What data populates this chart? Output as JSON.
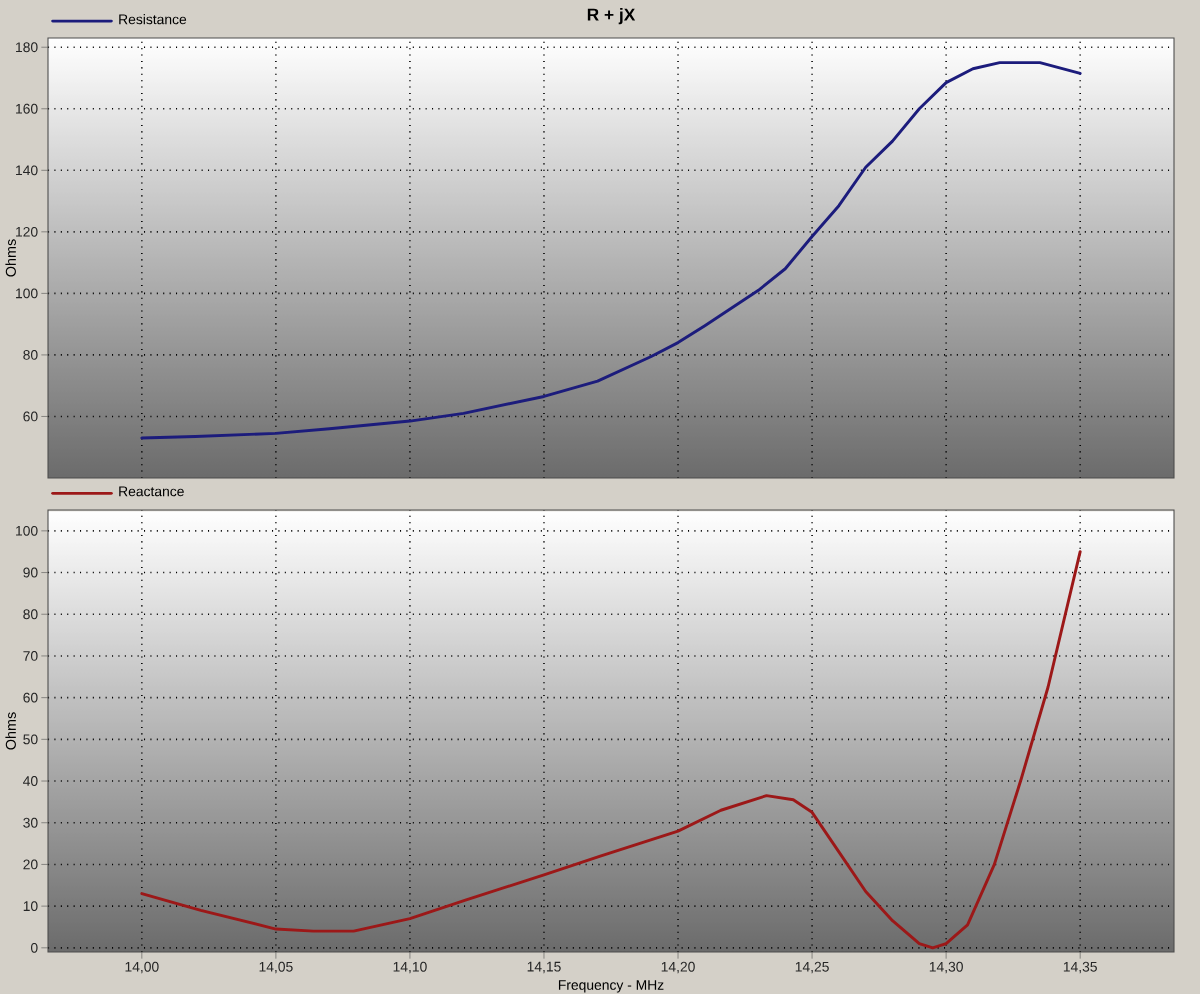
{
  "chart_data": [
    {
      "type": "line",
      "title": "R + jX",
      "ylabel": "Ohms",
      "x": [
        14.0,
        14.02,
        14.05,
        14.07,
        14.1,
        14.12,
        14.15,
        14.17,
        14.19,
        14.2,
        14.21,
        14.23,
        14.24,
        14.25,
        14.26,
        14.27,
        14.28,
        14.29,
        14.3,
        14.31,
        14.32,
        14.335,
        14.35
      ],
      "series": [
        {
          "name": "Resistance",
          "color": "#1c1c7c",
          "values": [
            53,
            53.5,
            54.5,
            56,
            58.5,
            61,
            66.5,
            71.5,
            79.5,
            84,
            89.5,
            101,
            108,
            118.5,
            128.5,
            141,
            149.5,
            160,
            168.5,
            173,
            175,
            175,
            171.5
          ]
        }
      ],
      "xlim": [
        13.965,
        14.385
      ],
      "ylim": [
        40,
        183
      ],
      "xticks": [
        14.0,
        14.05,
        14.1,
        14.15,
        14.2,
        14.25,
        14.3,
        14.35
      ],
      "yticks": [
        60,
        80,
        100,
        120,
        140,
        160,
        180
      ],
      "tick_labels": "y",
      "grid": true,
      "legend": "top left"
    },
    {
      "type": "line",
      "xlabel": "Frequency - MHz",
      "ylabel": "Ohms",
      "x": [
        14.0,
        14.022,
        14.05,
        14.064,
        14.079,
        14.1,
        14.121,
        14.15,
        14.171,
        14.2,
        14.216,
        14.233,
        14.243,
        14.25,
        14.26,
        14.27,
        14.28,
        14.29,
        14.295,
        14.3,
        14.308,
        14.318,
        14.328,
        14.338,
        14.35
      ],
      "series": [
        {
          "name": "Reactance",
          "color": "#9c1818",
          "values": [
            13,
            9,
            4.5,
            4,
            4,
            7,
            11.5,
            17.5,
            22,
            28,
            33,
            36.5,
            35.5,
            32.5,
            23,
            13.5,
            6.5,
            1,
            0,
            1,
            5.5,
            20,
            40.5,
            62.5,
            95
          ]
        }
      ],
      "xlim": [
        13.965,
        14.385
      ],
      "ylim": [
        -1,
        105
      ],
      "xticks": [
        {
          "value": 14.0,
          "label": "14,00"
        },
        {
          "value": 14.05,
          "label": "14,05"
        },
        {
          "value": 14.1,
          "label": "14,10"
        },
        {
          "value": 14.15,
          "label": "14,15"
        },
        {
          "value": 14.2,
          "label": "14,20"
        },
        {
          "value": 14.25,
          "label": "14,25"
        },
        {
          "value": 14.3,
          "label": "14,30"
        },
        {
          "value": 14.35,
          "label": "14,35"
        }
      ],
      "yticks": [
        0,
        10,
        20,
        30,
        40,
        50,
        60,
        70,
        80,
        90,
        100
      ],
      "grid": true,
      "legend": "top left"
    }
  ]
}
